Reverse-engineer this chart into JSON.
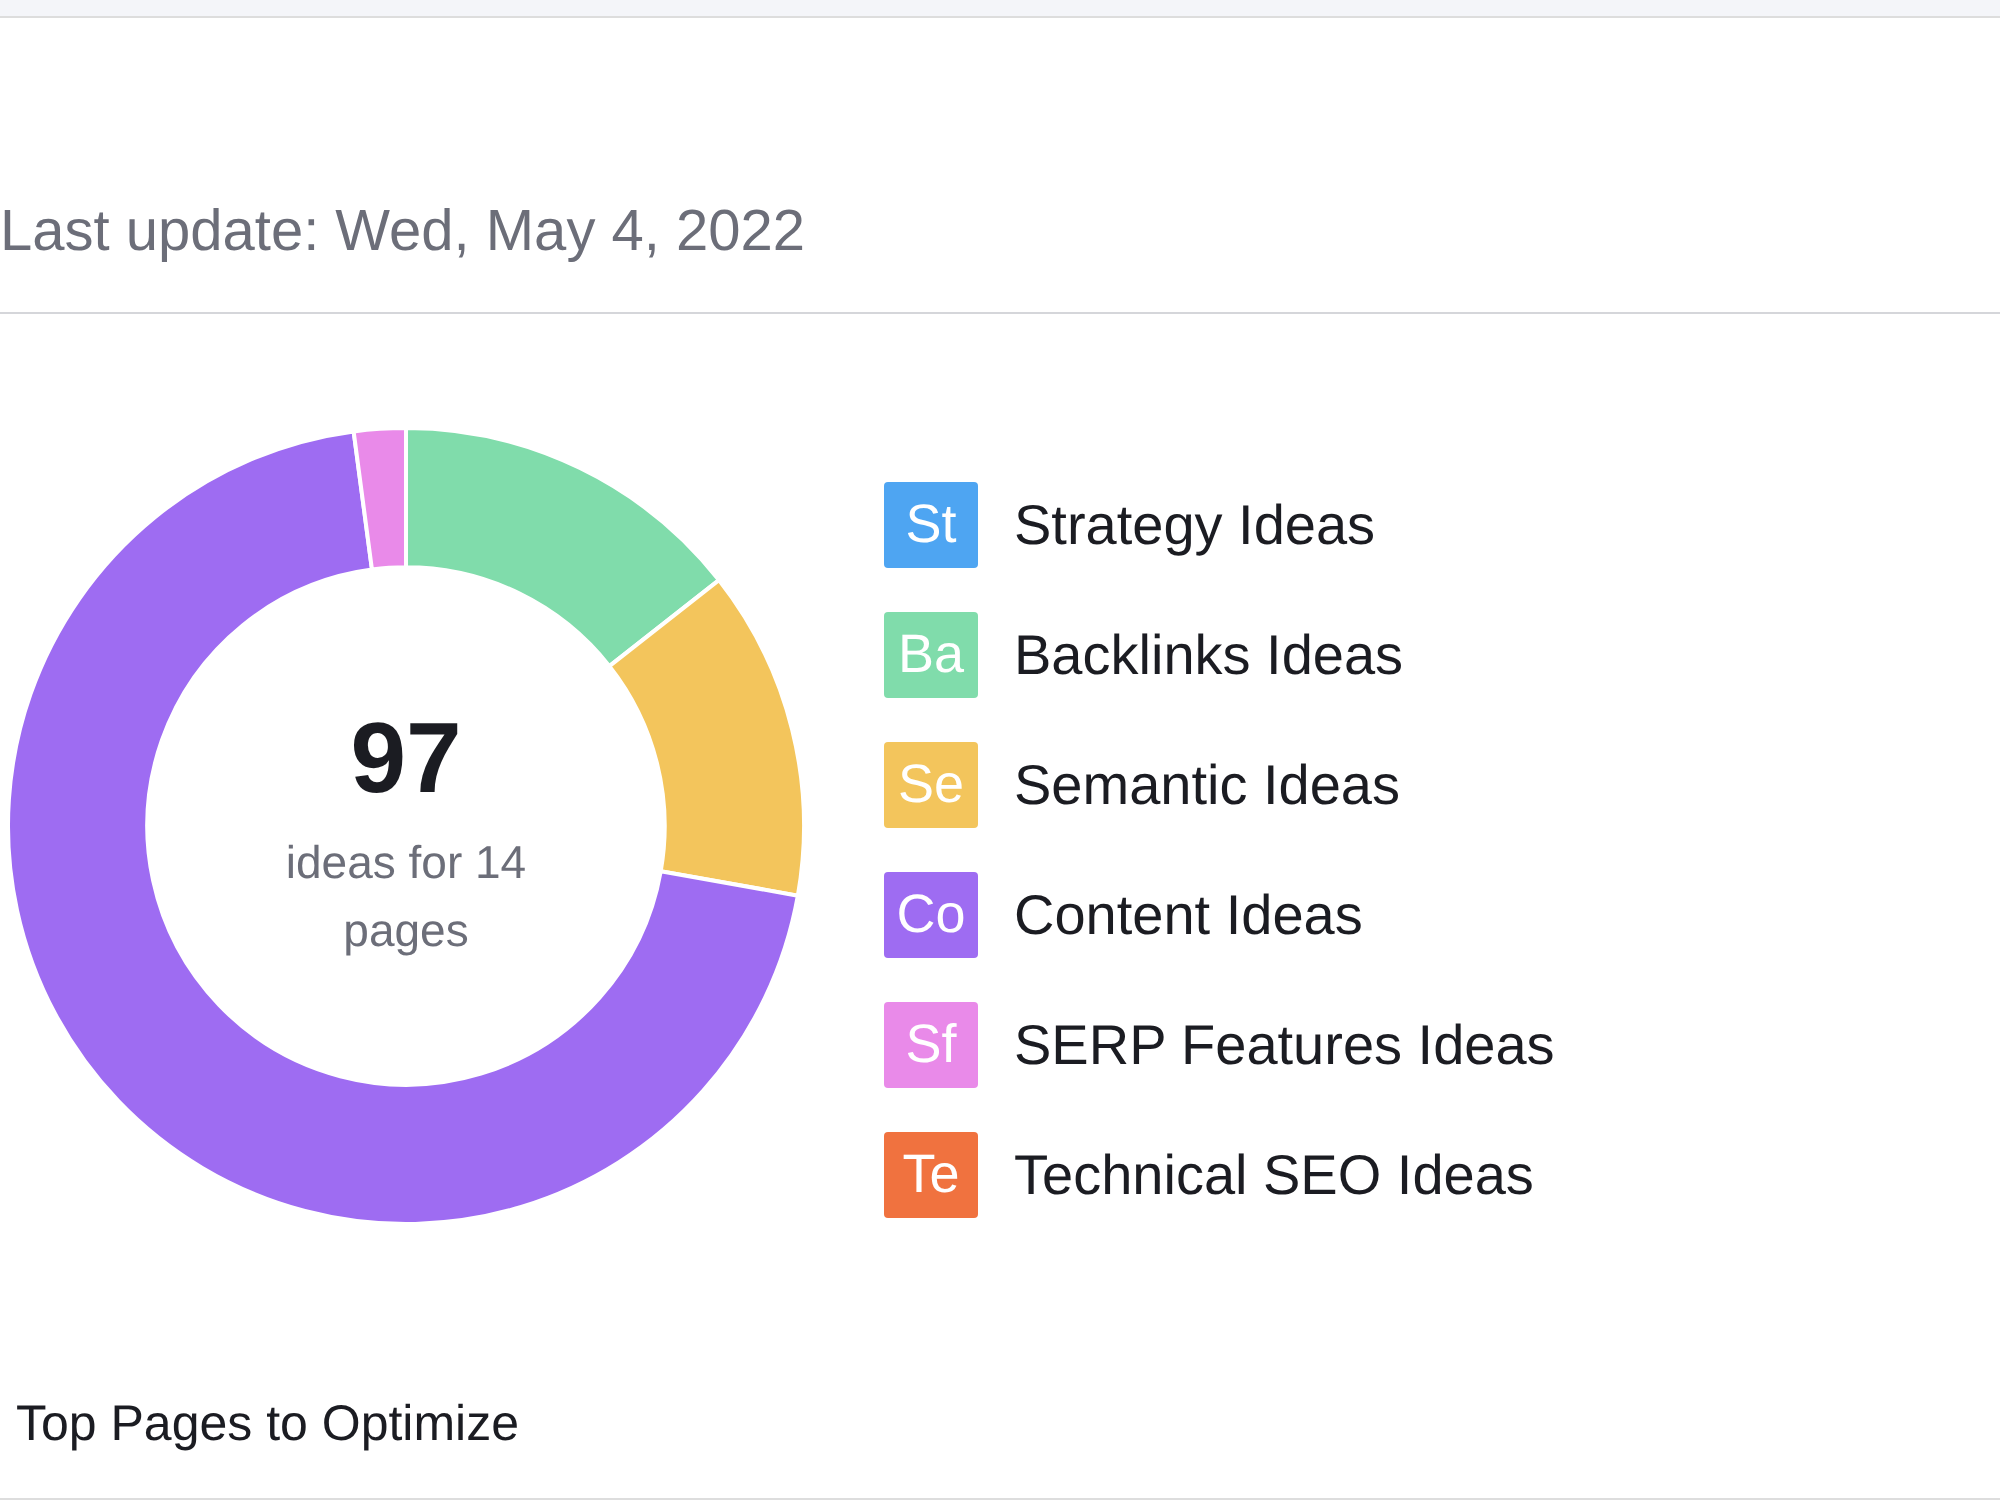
{
  "chart_data": {
    "type": "donut",
    "subtitle": "Last update: Wed, May 4, 2022",
    "categories": [
      "Strategy Ideas",
      "Backlinks Ideas",
      "Semantic Ideas",
      "Content Ideas",
      "SERP Features Ideas",
      "Technical SEO Ideas"
    ],
    "values": [
      0,
      14.4,
      13.4,
      70.1,
      2.1,
      0
    ],
    "colors": [
      "#4ea5f2",
      "#80dcab",
      "#f3c55c",
      "#9e6cf2",
      "#e98ae9",
      "#f0723f"
    ],
    "legend": "right",
    "annotations": [
      "97",
      "ideas for 14 pages",
      "St",
      "Ba",
      "Se",
      "Co",
      "Sf",
      "Te",
      "Top Pages to Optimize"
    ]
  }
}
